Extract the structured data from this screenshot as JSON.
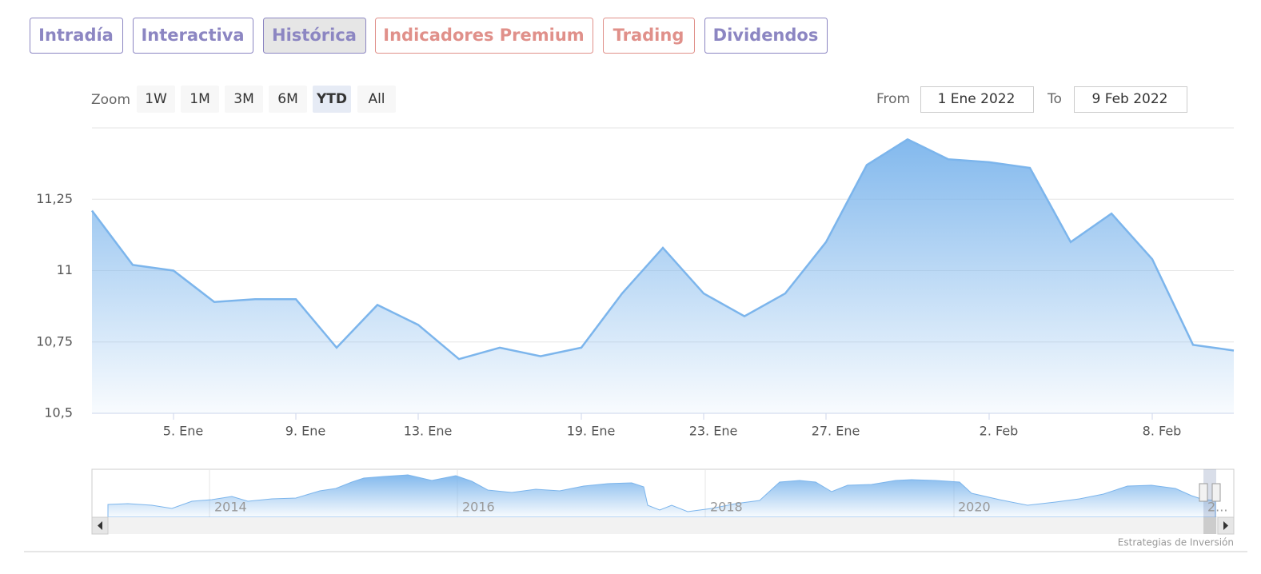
{
  "tabs": [
    {
      "label": "Intradía",
      "color": "#8c86c2"
    },
    {
      "label": "Interactiva",
      "color": "#8c86c2"
    },
    {
      "label": "Histórica",
      "color": "#8c86c2"
    },
    {
      "label": "Indicadores Premium",
      "color": "#e0908a"
    },
    {
      "label": "Trading",
      "color": "#e0908a"
    },
    {
      "label": "Dividendos",
      "color": "#8c86c2"
    }
  ],
  "selected_tab": 2,
  "zoom": {
    "label": "Zoom",
    "buttons": [
      "1W",
      "1M",
      "3M",
      "6M",
      "YTD",
      "All"
    ],
    "selected": 4
  },
  "range": {
    "from_label": "From",
    "from": "1 Ene 2022",
    "to_label": "To",
    "to": "9 Feb 2022"
  },
  "chart_data": {
    "type": "area",
    "categories": [
      null,
      null,
      "5. Ene",
      null,
      null,
      "9. Ene",
      null,
      null,
      "13. Ene",
      null,
      null,
      null,
      "19. Ene",
      null,
      null,
      "23. Ene",
      null,
      null,
      "27. Ene",
      null,
      null,
      null,
      "2. Feb",
      null,
      null,
      null,
      "8. Feb",
      null,
      null
    ],
    "values": [
      11.21,
      11.02,
      11.0,
      10.89,
      10.9,
      10.9,
      10.73,
      10.88,
      10.81,
      10.69,
      10.73,
      10.7,
      10.73,
      10.92,
      11.08,
      10.92,
      10.84,
      10.92,
      11.1,
      11.37,
      11.46,
      11.39,
      11.38,
      11.36,
      11.1,
      11.2,
      11.04,
      10.74,
      10.72
    ],
    "color": "#7cb5ec",
    "ylim": [
      10.5,
      11.5
    ],
    "yticks": [
      {
        "value": 10.5,
        "label": "10,5"
      },
      {
        "value": 10.75,
        "label": "10,75"
      },
      11,
      {
        "value": 11.25,
        "label": "11,25"
      }
    ],
    "grid": true
  },
  "navigator": {
    "labels": [
      "2014",
      "2016",
      "2018",
      "2020",
      "2..."
    ]
  },
  "credits": "Estrategias de Inversión"
}
